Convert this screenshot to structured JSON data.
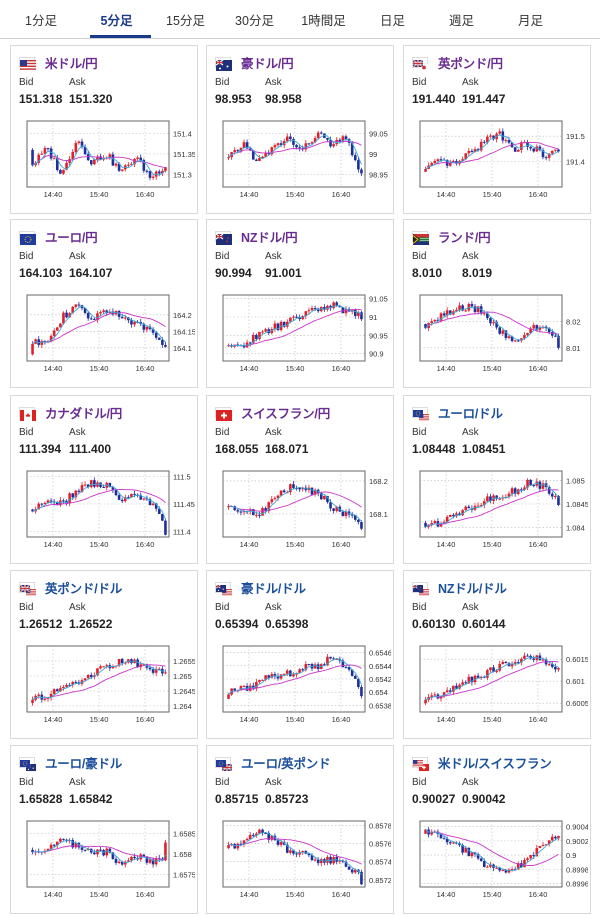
{
  "tabs": [
    {
      "label": "1分足",
      "active": false
    },
    {
      "label": "5分足",
      "active": true
    },
    {
      "label": "15分足",
      "active": false
    },
    {
      "label": "30分足",
      "active": false
    },
    {
      "label": "1時間足",
      "active": false
    },
    {
      "label": "日足",
      "active": false
    },
    {
      "label": "週足",
      "active": false
    },
    {
      "label": "月足",
      "active": false
    }
  ],
  "labels": {
    "bid": "Bid",
    "ask": "Ask"
  },
  "colors": {
    "up": "#e0202a",
    "down": "#1f2f9a",
    "ma_short": "#3aa8d8",
    "ma_long": "#cc33cc",
    "pair_purple": "#6a2c91",
    "pair_blue": "#1b4f9c"
  },
  "cards": [
    {
      "pair": "米ドル/円",
      "flags": [
        "us"
      ],
      "bid": "151.318",
      "ask": "151.320",
      "chart_data": {
        "type": "candlestick",
        "x_ticks": [
          "14:40",
          "15:40",
          "16:40"
        ],
        "y_ticks": [
          "151.4",
          "151.35",
          "151.3"
        ],
        "ylim": [
          151.27,
          151.43
        ],
        "start": 151.36,
        "end": 151.318,
        "path": [
          0.3,
          0.6,
          0.1,
          0.8,
          0.35,
          0.5,
          0.15,
          0.45,
          0.05,
          0.3
        ]
      }
    },
    {
      "pair": "豪ドル/円",
      "flags": [
        "au"
      ],
      "bid": "98.953",
      "ask": "98.958",
      "chart_data": {
        "type": "candlestick",
        "x_ticks": [
          "14:40",
          "15:40",
          "16:40"
        ],
        "y_ticks": [
          "99.05",
          "99",
          "98.95"
        ],
        "ylim": [
          98.92,
          99.08
        ],
        "start": 98.99,
        "end": 98.953,
        "path": [
          0.4,
          0.7,
          0.35,
          0.6,
          0.8,
          0.55,
          0.9,
          0.65,
          0.8,
          0.1
        ]
      }
    },
    {
      "pair": "英ポンド/円",
      "flags": [
        "gb",
        "jp"
      ],
      "bid": "191.440",
      "ask": "191.447",
      "chart_data": {
        "type": "candlestick",
        "x_ticks": [
          "14:40",
          "15:40",
          "16:40"
        ],
        "y_ticks": [
          "191.5",
          "191.4"
        ],
        "ylim": [
          191.3,
          191.56
        ],
        "start": 191.36,
        "end": 191.44,
        "path": [
          0.2,
          0.35,
          0.3,
          0.5,
          0.75,
          0.9,
          0.6,
          0.7,
          0.45,
          0.55
        ]
      }
    },
    {
      "pair": "ユーロ/円",
      "flags": [
        "eu"
      ],
      "bid": "164.103",
      "ask": "164.107",
      "chart_data": {
        "type": "candlestick",
        "x_ticks": [
          "14:40",
          "15:40",
          "16:40"
        ],
        "y_ticks": [
          "164.2",
          "164.15",
          "164.1"
        ],
        "ylim": [
          164.06,
          164.26
        ],
        "start": 164.08,
        "end": 164.103,
        "path": [
          0.2,
          0.3,
          0.7,
          0.9,
          0.65,
          0.85,
          0.75,
          0.55,
          0.45,
          0.2
        ]
      }
    },
    {
      "pair": "NZドル/円",
      "flags": [
        "nz"
      ],
      "bid": "90.994",
      "ask": "91.001",
      "chart_data": {
        "type": "candlestick",
        "x_ticks": [
          "14:40",
          "15:40",
          "16:40"
        ],
        "y_ticks": [
          "91.05",
          "91",
          "90.95",
          "90.9"
        ],
        "ylim": [
          90.88,
          91.06
        ],
        "start": 90.92,
        "end": 90.994,
        "path": [
          0.1,
          0.2,
          0.35,
          0.5,
          0.6,
          0.75,
          0.85,
          0.95,
          0.8,
          0.75
        ]
      }
    },
    {
      "pair": "ランド/円",
      "flags": [
        "za"
      ],
      "bid": "8.010",
      "ask": "8.019",
      "chart_data": {
        "type": "candlestick",
        "x_ticks": [
          "14:40",
          "15:40",
          "16:40"
        ],
        "y_ticks": [
          "8.02",
          "8.01"
        ],
        "ylim": [
          8.005,
          8.03
        ],
        "start": 8.019,
        "end": 8.01,
        "path": [
          0.55,
          0.7,
          0.85,
          0.9,
          0.8,
          0.45,
          0.2,
          0.5,
          0.45,
          0.3
        ]
      }
    },
    {
      "pair": "カナダドル/円",
      "flags": [
        "ca"
      ],
      "bid": "111.394",
      "ask": "111.400",
      "chart_data": {
        "type": "candlestick",
        "x_ticks": [
          "14:40",
          "15:40",
          "16:40"
        ],
        "y_ticks": [
          "111.5",
          "111.45",
          "111.4"
        ],
        "ylim": [
          111.39,
          111.51
        ],
        "start": 111.44,
        "end": 111.394,
        "path": [
          0.4,
          0.55,
          0.5,
          0.75,
          0.9,
          0.85,
          0.6,
          0.7,
          0.5,
          0.1
        ]
      }
    },
    {
      "pair": "スイスフラン/円",
      "flags": [
        "ch"
      ],
      "bid": "168.055",
      "ask": "168.071",
      "chart_data": {
        "type": "candlestick",
        "x_ticks": [
          "14:40",
          "15:40",
          "16:40"
        ],
        "y_ticks": [
          "168.2",
          "168.1"
        ],
        "ylim": [
          168.03,
          168.23
        ],
        "start": 168.12,
        "end": 168.055,
        "path": [
          0.45,
          0.4,
          0.3,
          0.55,
          0.8,
          0.85,
          0.7,
          0.45,
          0.3,
          0.15
        ]
      }
    },
    {
      "pair": "ユーロ/ドル",
      "flags": [
        "eu",
        "us"
      ],
      "bid": "1.08448",
      "ask": "1.08451",
      "chart_data": {
        "type": "candlestick",
        "x_ticks": [
          "14:40",
          "15:40",
          "16:40"
        ],
        "y_ticks": [
          "1.085",
          "1.0845",
          "1.084"
        ],
        "ylim": [
          1.0838,
          1.0852
        ],
        "start": 1.0841,
        "end": 1.08448,
        "path": [
          0.1,
          0.15,
          0.3,
          0.45,
          0.55,
          0.65,
          0.75,
          0.9,
          0.85,
          0.55
        ]
      }
    },
    {
      "pair": "英ポンド/ドル",
      "flags": [
        "gb",
        "us"
      ],
      "bid": "1.26512",
      "ask": "1.26522",
      "chart_data": {
        "type": "candlestick",
        "x_ticks": [
          "14:40",
          "15:40",
          "16:40"
        ],
        "y_ticks": [
          "1.2655",
          "1.265",
          "1.2645",
          "1.264"
        ],
        "ylim": [
          1.2638,
          1.266
        ],
        "start": 1.2641,
        "end": 1.26512,
        "path": [
          0.1,
          0.2,
          0.3,
          0.45,
          0.6,
          0.75,
          0.85,
          0.8,
          0.7,
          0.6
        ]
      }
    },
    {
      "pair": "豪ドル/ドル",
      "flags": [
        "au",
        "us"
      ],
      "bid": "0.65394",
      "ask": "0.65398",
      "chart_data": {
        "type": "candlestick",
        "x_ticks": [
          "14:40",
          "15:40",
          "16:40"
        ],
        "y_ticks": [
          "0.6546",
          "0.6544",
          "0.6542",
          "0.654",
          "0.6538"
        ],
        "ylim": [
          0.6537,
          0.6547
        ],
        "start": 0.6539,
        "end": 0.65394,
        "path": [
          0.25,
          0.3,
          0.45,
          0.55,
          0.6,
          0.7,
          0.75,
          0.9,
          0.75,
          0.2
        ]
      }
    },
    {
      "pair": "NZドル/ドル",
      "flags": [
        "nz",
        "us"
      ],
      "bid": "0.60130",
      "ask": "0.60144",
      "chart_data": {
        "type": "candlestick",
        "x_ticks": [
          "14:40",
          "15:40",
          "16:40"
        ],
        "y_ticks": [
          "0.6015",
          "0.601",
          "0.6005"
        ],
        "ylim": [
          0.6003,
          0.6018
        ],
        "start": 0.6005,
        "end": 0.6013,
        "path": [
          0.15,
          0.2,
          0.35,
          0.5,
          0.6,
          0.75,
          0.85,
          0.9,
          0.85,
          0.65
        ]
      }
    },
    {
      "pair": "ユーロ/豪ドル",
      "flags": [
        "eu",
        "au"
      ],
      "bid": "1.65828",
      "ask": "1.65842",
      "chart_data": {
        "type": "candlestick",
        "x_ticks": [
          "14:40",
          "15:40",
          "16:40"
        ],
        "y_ticks": [
          "1.6585",
          "1.658",
          "1.6575"
        ],
        "ylim": [
          1.6572,
          1.6588
        ],
        "start": 1.6581,
        "end": 1.65828,
        "path": [
          0.5,
          0.6,
          0.75,
          0.65,
          0.5,
          0.55,
          0.3,
          0.45,
          0.35,
          0.4
        ]
      }
    },
    {
      "pair": "ユーロ/英ポンド",
      "flags": [
        "eu",
        "gb"
      ],
      "bid": "0.85715",
      "ask": "0.85723",
      "chart_data": {
        "type": "candlestick",
        "x_ticks": [
          "14:40",
          "15:40",
          "16:40"
        ],
        "y_ticks": [
          "0.8578",
          "0.8576",
          "0.8574",
          "0.8572"
        ],
        "ylim": [
          0.85712,
          0.85785
        ],
        "start": 0.85755,
        "end": 0.85715,
        "path": [
          0.6,
          0.75,
          0.9,
          0.8,
          0.55,
          0.5,
          0.35,
          0.4,
          0.3,
          0.05
        ]
      }
    },
    {
      "pair": "米ドル/スイスフラン",
      "flags": [
        "us",
        "ch"
      ],
      "bid": "0.90027",
      "ask": "0.90042",
      "chart_data": {
        "type": "candlestick",
        "x_ticks": [
          "14:40",
          "15:40",
          "16:40"
        ],
        "y_ticks": [
          "0.9004",
          "0.9002",
          "0.9",
          "0.8998",
          "0.8996"
        ],
        "ylim": [
          0.89955,
          0.90048
        ],
        "start": 0.9003,
        "end": 0.90027,
        "path": [
          0.9,
          0.85,
          0.7,
          0.5,
          0.3,
          0.15,
          0.2,
          0.45,
          0.7,
          0.85
        ]
      }
    }
  ]
}
